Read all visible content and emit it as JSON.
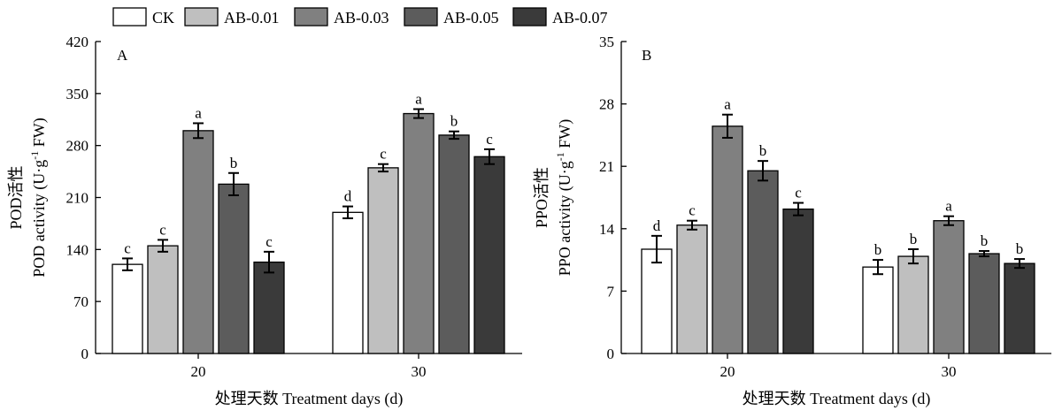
{
  "legend": [
    {
      "name": "CK",
      "color": "#ffffff"
    },
    {
      "name": "AB-0.01",
      "color": "#bfbfbf"
    },
    {
      "name": "AB-0.03",
      "color": "#808080"
    },
    {
      "name": "AB-0.05",
      "color": "#5c5c5c"
    },
    {
      "name": "AB-0.07",
      "color": "#3a3a3a"
    }
  ],
  "chart_data": [
    {
      "type": "bar",
      "panel_label": "A",
      "title": "",
      "xlabel": "处理天数 Treatment days (d)",
      "ylabel_line1": "POD活性",
      "ylabel_line2_pre": "POD activity (U·g",
      "ylabel_line2_sup": "-1",
      "ylabel_line2_post": " FW)",
      "categories": [
        "20",
        "30"
      ],
      "ylim": [
        0,
        420
      ],
      "yticks": [
        "0",
        "70",
        "140",
        "210",
        "280",
        "350",
        "420"
      ],
      "grid": false,
      "legend_position": "top",
      "series": [
        {
          "name": "CK",
          "values": [
            120,
            190
          ],
          "errors": [
            8,
            8
          ],
          "letters": [
            "c",
            "d"
          ]
        },
        {
          "name": "AB-0.01",
          "values": [
            145,
            250
          ],
          "errors": [
            8,
            5
          ],
          "letters": [
            "c",
            "c"
          ]
        },
        {
          "name": "AB-0.03",
          "values": [
            300,
            323
          ],
          "errors": [
            10,
            6
          ],
          "letters": [
            "a",
            "a"
          ]
        },
        {
          "name": "AB-0.05",
          "values": [
            228,
            294
          ],
          "errors": [
            15,
            5
          ],
          "letters": [
            "b",
            "b"
          ]
        },
        {
          "name": "AB-0.07",
          "values": [
            123,
            265
          ],
          "errors": [
            14,
            10
          ],
          "letters": [
            "c",
            "c"
          ]
        }
      ]
    },
    {
      "type": "bar",
      "panel_label": "B",
      "title": "",
      "xlabel": "处理天数 Treatment days (d)",
      "ylabel_line1": "PPO活性",
      "ylabel_line2_pre": "PPO activity (U·g",
      "ylabel_line2_sup": "-1",
      "ylabel_line2_post": " FW)",
      "categories": [
        "20",
        "30"
      ],
      "ylim": [
        0,
        35
      ],
      "yticks": [
        "0",
        "7",
        "14",
        "21",
        "28",
        "35"
      ],
      "grid": false,
      "legend_position": "top",
      "series": [
        {
          "name": "CK",
          "values": [
            11.7,
            9.7
          ],
          "errors": [
            1.5,
            0.8
          ],
          "letters": [
            "d",
            "b"
          ]
        },
        {
          "name": "AB-0.01",
          "values": [
            14.4,
            10.9
          ],
          "errors": [
            0.5,
            0.8
          ],
          "letters": [
            "c",
            "b"
          ]
        },
        {
          "name": "AB-0.03",
          "values": [
            25.5,
            14.9
          ],
          "errors": [
            1.3,
            0.5
          ],
          "letters": [
            "a",
            "a"
          ]
        },
        {
          "name": "AB-0.05",
          "values": [
            20.5,
            11.2
          ],
          "errors": [
            1.1,
            0.3
          ],
          "letters": [
            "b",
            "b"
          ]
        },
        {
          "name": "AB-0.07",
          "values": [
            16.2,
            10.1
          ],
          "errors": [
            0.7,
            0.5
          ],
          "letters": [
            "c",
            "b"
          ]
        }
      ]
    }
  ]
}
